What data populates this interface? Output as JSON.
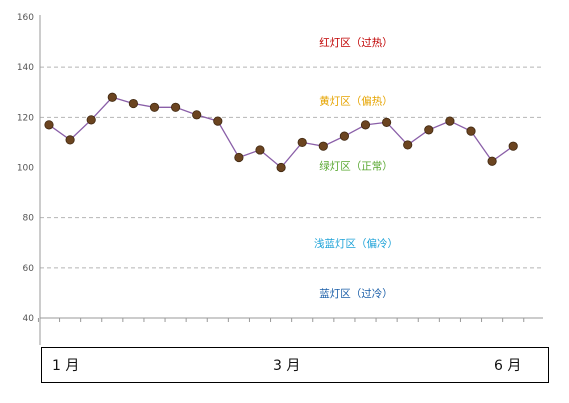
{
  "chart_data": {
    "type": "line",
    "ylim": [
      40,
      160
    ],
    "yticks": [
      "40",
      "60",
      "80",
      "100",
      "120",
      "140",
      "160"
    ],
    "values": [
      117,
      111,
      119,
      128,
      125.5,
      124,
      124,
      121,
      118.5,
      104,
      107,
      100,
      110,
      108.5,
      112.5,
      117,
      118,
      109,
      115,
      118.5,
      114.5,
      102.5,
      108.5
    ],
    "zone_lines": [
      60,
      80,
      120,
      140
    ],
    "zones": [
      {
        "label": "红灯区（过热）",
        "color": "#c00000"
      },
      {
        "label": "黄灯区（偏热）",
        "color": "#e6a400"
      },
      {
        "label": "绿灯区（正常）",
        "color": "#5aa832"
      },
      {
        "label": "浅蓝灯区（偏冷）",
        "color": "#1fa3d8"
      },
      {
        "label": "蓝灯区（过冷）",
        "color": "#1a5ea8"
      }
    ],
    "x_month_labels": [
      "1 月",
      "3 月",
      "6 月"
    ],
    "line_color": "#8a5fa8",
    "marker_color": "#6b4420",
    "grid": "dashed horizontal zone boundaries"
  }
}
